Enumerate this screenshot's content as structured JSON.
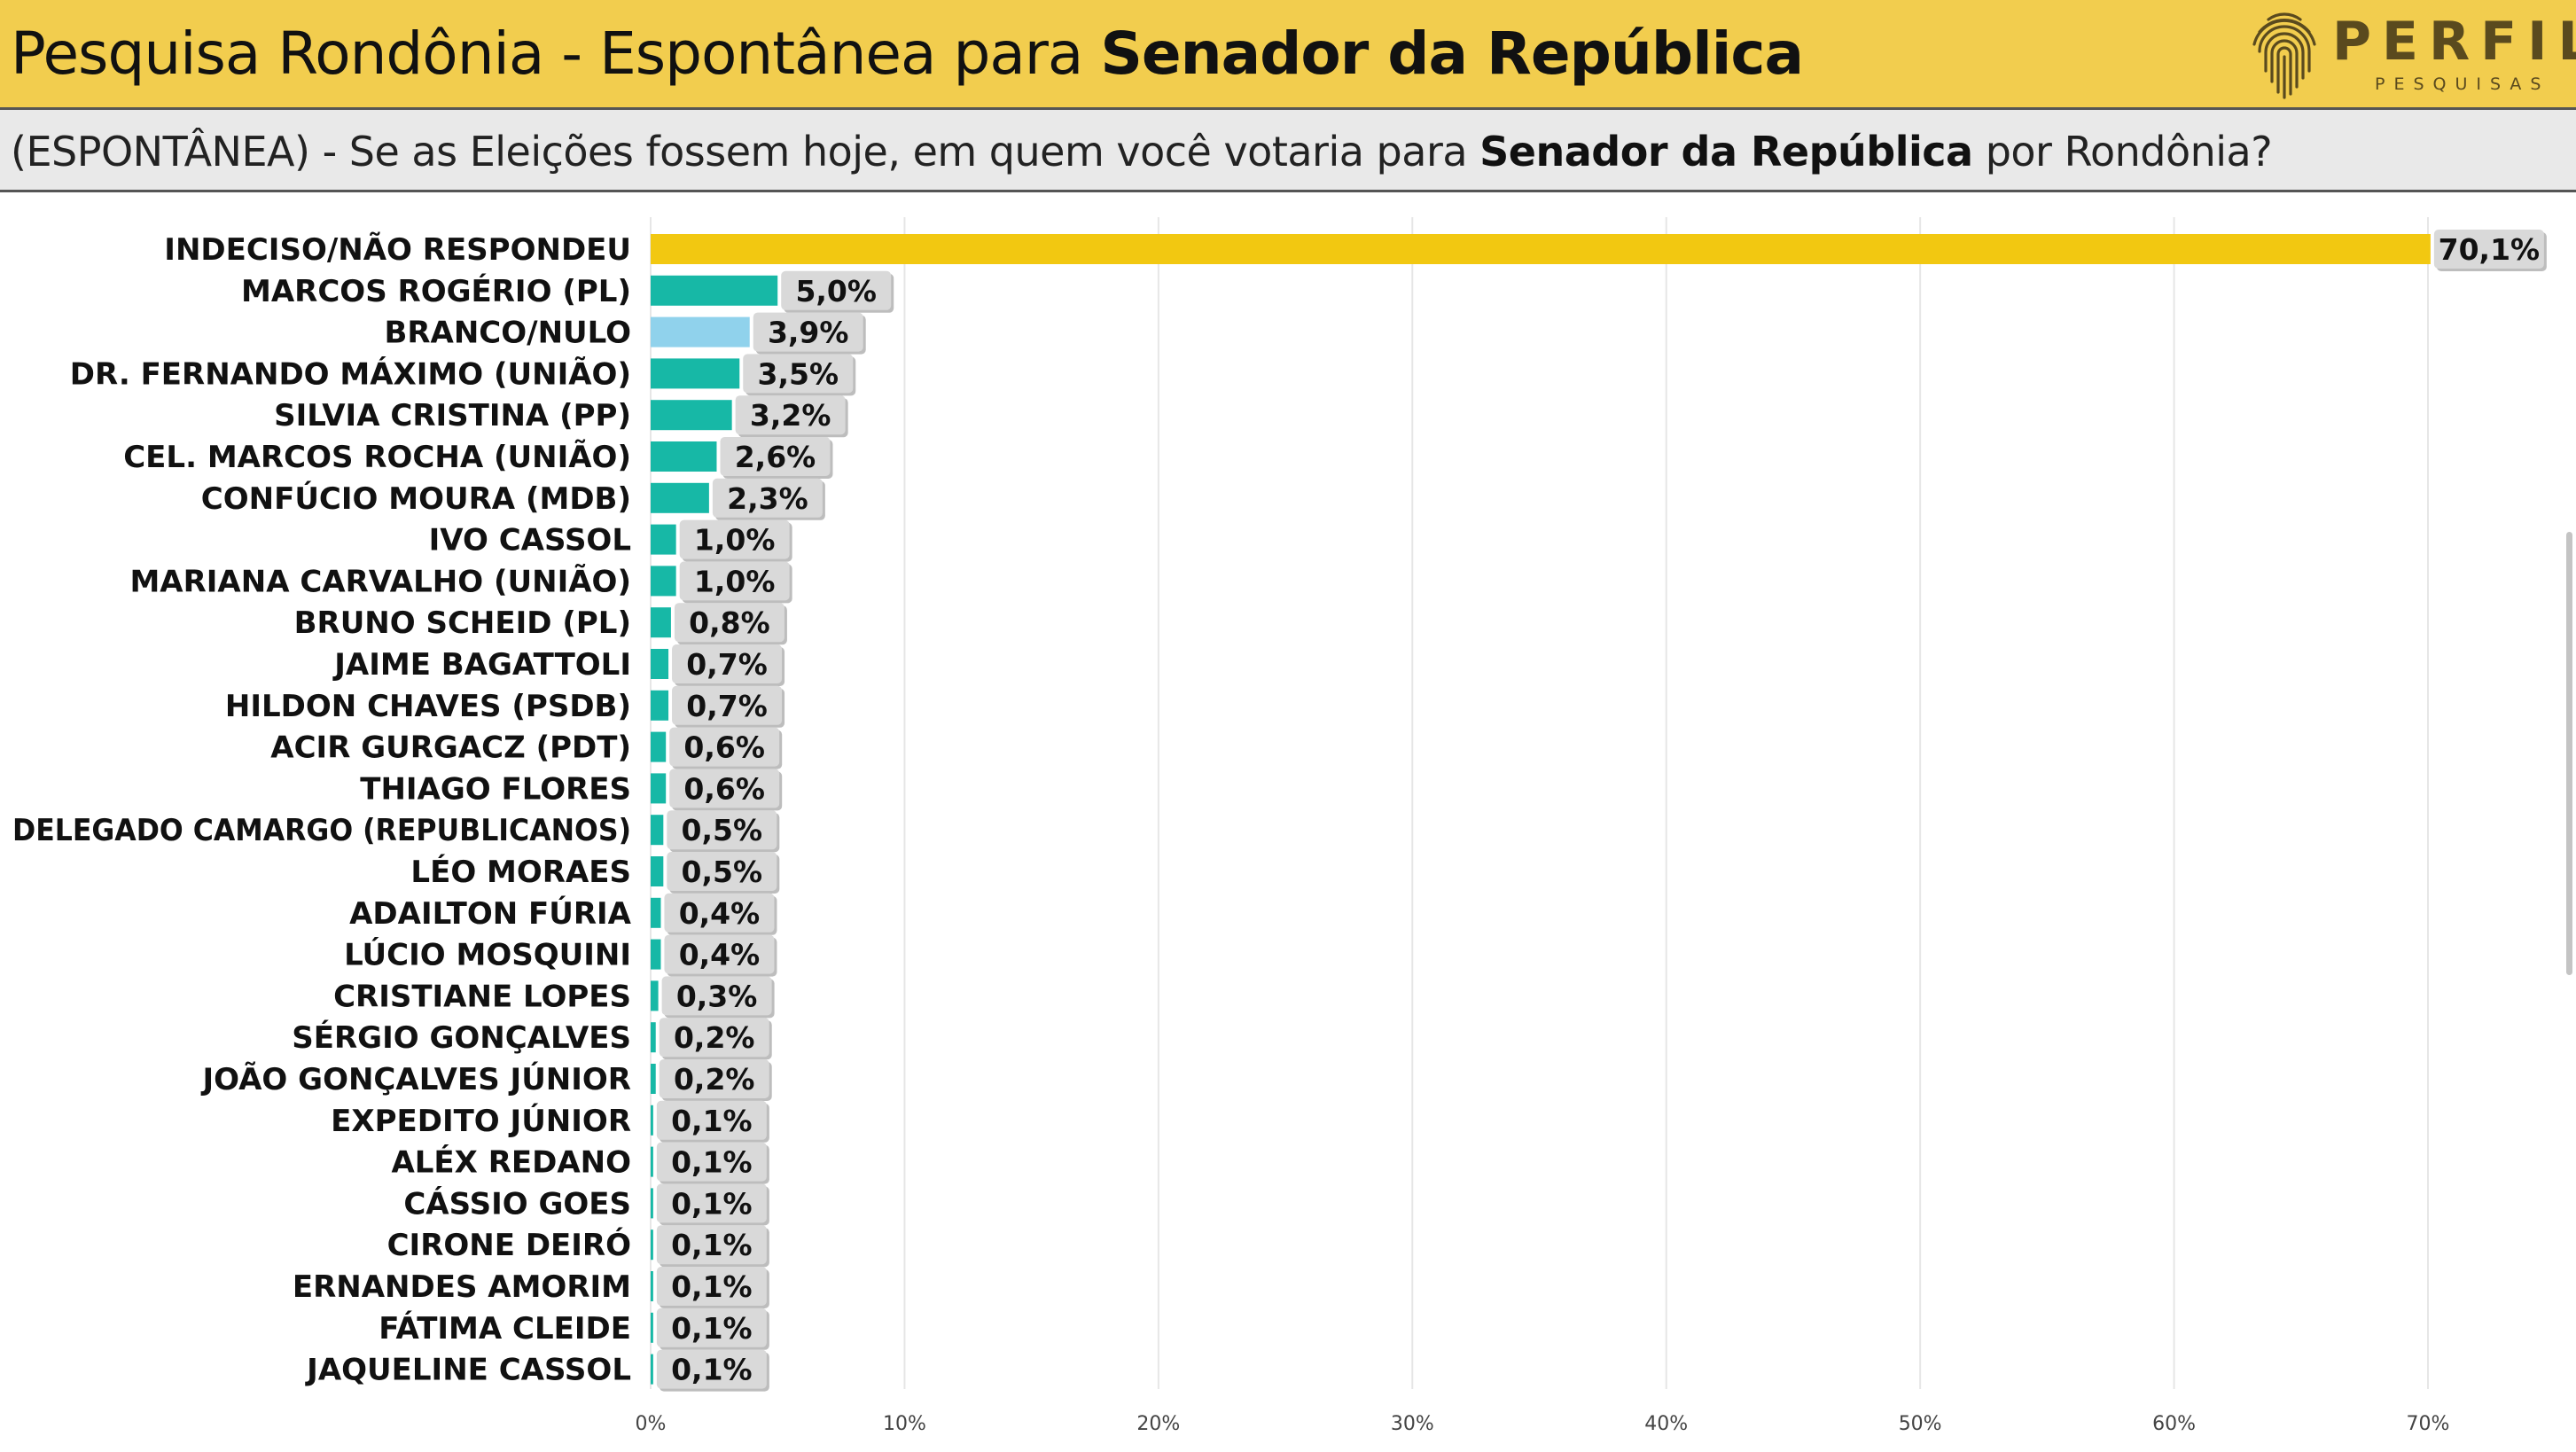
{
  "header": {
    "title_prefix": "Pesquisa Rondônia - Espontânea para ",
    "title_bold": "Senador da República",
    "logo_name": "PERFIL",
    "logo_sub": "PESQUISAS"
  },
  "subheader": {
    "prefix": "(ESPONTÂNEA) - Se as Eleições fossem hoje, em quem você votaria para ",
    "bold": "Senador da República",
    "suffix": " por Rondônia?"
  },
  "colors": {
    "header_bg": "#f2cd4e",
    "highlight_bar": "#f2c811",
    "candidate_bar": "#17b8a6",
    "null_bar": "#90d2ec",
    "label_box": "#d9d9d9",
    "gridline": "#e6e6e6"
  },
  "chart_data": {
    "type": "bar",
    "orientation": "horizontal",
    "title": "Pesquisa Rondônia - Espontânea para Senador da República",
    "xlim": [
      0,
      75
    ],
    "xticks": [
      0,
      10,
      20,
      30,
      40,
      50,
      60,
      70
    ],
    "xtick_labels": [
      "0%",
      "10%",
      "20%",
      "30%",
      "40%",
      "50%",
      "60%",
      "70%"
    ],
    "categories": [
      "INDECISO/NÃO RESPONDEU",
      "MARCOS ROGÉRIO (PL)",
      "BRANCO/NULO",
      "DR. FERNANDO MÁXIMO (UNIÃO)",
      "SILVIA CRISTINA (PP)",
      "CEL. MARCOS ROCHA (UNIÃO)",
      "CONFÚCIO MOURA (MDB)",
      "IVO CASSOL",
      "MARIANA CARVALHO (UNIÃO)",
      "BRUNO SCHEID (PL)",
      "JAIME BAGATTOLI",
      "HILDON CHAVES (PSDB)",
      "ACIR GURGACZ (PDT)",
      "THIAGO FLORES",
      "DELEGADO CAMARGO (REPUBLICANOS)",
      "LÉO MORAES",
      "ADAILTON FÚRIA",
      "LÚCIO MOSQUINI",
      "CRISTIANE LOPES",
      "SÉRGIO GONÇALVES",
      "JOÃO GONÇALVES JÚNIOR",
      "EXPEDITO JÚNIOR",
      "ALÉX REDANO",
      "CÁSSIO GOES",
      "CIRONE DEIRÓ",
      "ERNANDES AMORIM",
      "FÁTIMA CLEIDE",
      "JAQUELINE CASSOL"
    ],
    "values": [
      70.1,
      5.0,
      3.9,
      3.5,
      3.2,
      2.6,
      2.3,
      1.0,
      1.0,
      0.8,
      0.7,
      0.7,
      0.6,
      0.6,
      0.5,
      0.5,
      0.4,
      0.4,
      0.3,
      0.2,
      0.2,
      0.1,
      0.1,
      0.1,
      0.1,
      0.1,
      0.1,
      0.1
    ],
    "value_labels": [
      "70,1%",
      "5,0%",
      "3,9%",
      "3,5%",
      "3,2%",
      "2,6%",
      "2,3%",
      "1,0%",
      "1,0%",
      "0,8%",
      "0,7%",
      "0,7%",
      "0,6%",
      "0,6%",
      "0,5%",
      "0,5%",
      "0,4%",
      "0,4%",
      "0,3%",
      "0,2%",
      "0,2%",
      "0,1%",
      "0,1%",
      "0,1%",
      "0,1%",
      "0,1%",
      "0,1%",
      "0,1%"
    ],
    "bar_kinds": [
      "highlight",
      "candidate",
      "null",
      "candidate",
      "candidate",
      "candidate",
      "candidate",
      "candidate",
      "candidate",
      "candidate",
      "candidate",
      "candidate",
      "candidate",
      "candidate",
      "candidate",
      "candidate",
      "candidate",
      "candidate",
      "candidate",
      "candidate",
      "candidate",
      "candidate",
      "candidate",
      "candidate",
      "candidate",
      "candidate",
      "candidate",
      "candidate"
    ],
    "grid": true,
    "legend": "none"
  }
}
